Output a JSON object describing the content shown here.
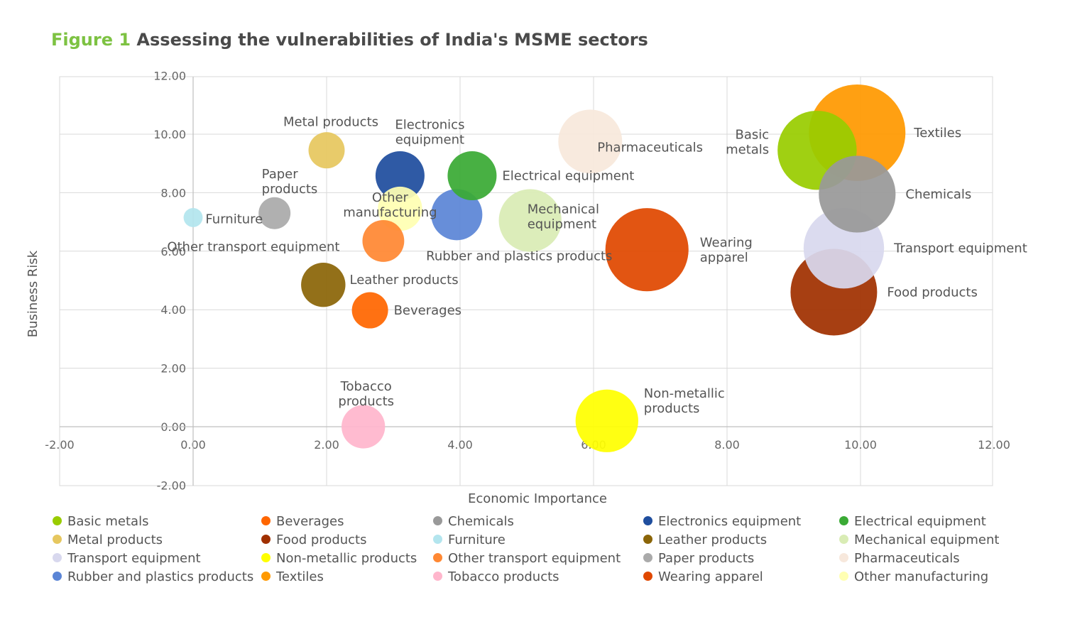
{
  "title": {
    "prefix": "Figure 1",
    "text": "Assessing the vulnerabilities of India's MSME sectors"
  },
  "chart_data": {
    "type": "scatter",
    "subtype": "bubble",
    "xlabel": "Economic Importance",
    "ylabel": "Business Risk",
    "xlim": [
      -2,
      12
    ],
    "ylim": [
      -2,
      12
    ],
    "x_ticks": [
      "-2.00",
      "0.00",
      "2.00",
      "4.00",
      "6.00",
      "8.00",
      "10.00",
      "12.00"
    ],
    "y_ticks": [
      "-2.00",
      "0.00",
      "2.00",
      "4.00",
      "6.00",
      "8.00",
      "10.00",
      "12.00"
    ],
    "grid": true,
    "legend_position": "bottom",
    "series": [
      {
        "name": "Basic metals",
        "x": 9.35,
        "y": 9.45,
        "size": 8.6,
        "color": "#99cc00",
        "label": "Basic\nmetals"
      },
      {
        "name": "Beverages",
        "x": 2.65,
        "y": 3.98,
        "size": 1.8,
        "color": "#ff6600",
        "label": "Beverages"
      },
      {
        "name": "Chemicals",
        "x": 9.95,
        "y": 7.95,
        "size": 8.1,
        "color": "#999999",
        "label": "Chemicals"
      },
      {
        "name": "Electronics equipment",
        "x": 3.1,
        "y": 8.58,
        "size": 3.3,
        "color": "#1f4e9e",
        "label": "Electronics\nequipment"
      },
      {
        "name": "Electrical equipment",
        "x": 4.18,
        "y": 8.58,
        "size": 3.3,
        "color": "#3aaa35",
        "label": "Electrical equipment"
      },
      {
        "name": "Metal products",
        "x": 2.0,
        "y": 9.45,
        "size": 1.8,
        "color": "#e6c75f",
        "label": "Metal products"
      },
      {
        "name": "Food products",
        "x": 9.6,
        "y": 4.6,
        "size": 10.3,
        "color": "#a03000",
        "label": "Food products"
      },
      {
        "name": "Furniture",
        "x": 0.0,
        "y": 7.15,
        "size": 0.5,
        "color": "#b3e5ee",
        "label": "Furniture"
      },
      {
        "name": "Leather products",
        "x": 1.95,
        "y": 4.85,
        "size": 2.7,
        "color": "#8b6508",
        "label": "Leather products"
      },
      {
        "name": "Mechanical equipment",
        "x": 5.05,
        "y": 7.05,
        "size": 5.4,
        "color": "#d9ecb5",
        "label": "Mechanical\nequipment"
      },
      {
        "name": "Transport equipment",
        "x": 9.75,
        "y": 6.1,
        "size": 8.9,
        "color": "#d8d8ee",
        "label": "Transport equipment"
      },
      {
        "name": "Non-metallic products",
        "x": 6.2,
        "y": 0.2,
        "size": 5.4,
        "color": "#ffff00",
        "label": "Non-metallic\nproducts"
      },
      {
        "name": "Other transport equipment",
        "x": 2.85,
        "y": 6.35,
        "size": 2.4,
        "color": "#ff8833",
        "label": "Other transport equipment"
      },
      {
        "name": "Paper products",
        "x": 1.22,
        "y": 7.3,
        "size": 1.4,
        "color": "#aaaaaa",
        "label": "Paper\nproducts"
      },
      {
        "name": "Pharmaceuticals",
        "x": 5.95,
        "y": 9.75,
        "size": 5.6,
        "color": "#f7e8dc",
        "label": "Pharmaceuticals"
      },
      {
        "name": "Rubber and plastics products",
        "x": 3.95,
        "y": 7.25,
        "size": 3.6,
        "color": "#5b85d6",
        "label": "Rubber and plastics products"
      },
      {
        "name": "Textiles",
        "x": 9.95,
        "y": 10.05,
        "size": 12.8,
        "color": "#ff9900",
        "label": "Textiles"
      },
      {
        "name": "Tobacco products",
        "x": 2.55,
        "y": 0.0,
        "size": 2.6,
        "color": "#ffb6cc",
        "label": "Tobacco\nproducts"
      },
      {
        "name": "Wearing apparel",
        "x": 6.8,
        "y": 6.05,
        "size": 9.5,
        "color": "#e04800",
        "label": "Wearing\napparel"
      },
      {
        "name": "Other manufacturing",
        "x": 3.1,
        "y": 7.45,
        "size": 2.7,
        "color": "#ffffb3",
        "label": "Other\nmanufacturing"
      }
    ]
  },
  "legend": [
    {
      "name": "Basic metals",
      "color": "#99cc00"
    },
    {
      "name": "Beverages",
      "color": "#ff6600"
    },
    {
      "name": "Chemicals",
      "color": "#999999"
    },
    {
      "name": "Electronics equipment",
      "color": "#1f4e9e"
    },
    {
      "name": "Electrical equipment",
      "color": "#3aaa35"
    },
    {
      "name": "Metal products",
      "color": "#e6c75f"
    },
    {
      "name": "Food products",
      "color": "#a03000"
    },
    {
      "name": "Furniture",
      "color": "#b3e5ee"
    },
    {
      "name": "Leather products",
      "color": "#8b6508"
    },
    {
      "name": "Mechanical equipment",
      "color": "#d9ecb5"
    },
    {
      "name": "Transport equipment",
      "color": "#d8d8ee"
    },
    {
      "name": "Non-metallic products",
      "color": "#ffff00"
    },
    {
      "name": "Other transport equipment",
      "color": "#ff8833"
    },
    {
      "name": "Paper products",
      "color": "#aaaaaa"
    },
    {
      "name": "Pharmaceuticals",
      "color": "#f7e8dc"
    },
    {
      "name": "Rubber and plastics products",
      "color": "#5b85d6"
    },
    {
      "name": "Textiles",
      "color": "#ff9900"
    },
    {
      "name": "Tobacco products",
      "color": "#ffb6cc"
    },
    {
      "name": "Wearing apparel",
      "color": "#e04800"
    },
    {
      "name": "Other manufacturing",
      "color": "#ffffb3"
    }
  ]
}
